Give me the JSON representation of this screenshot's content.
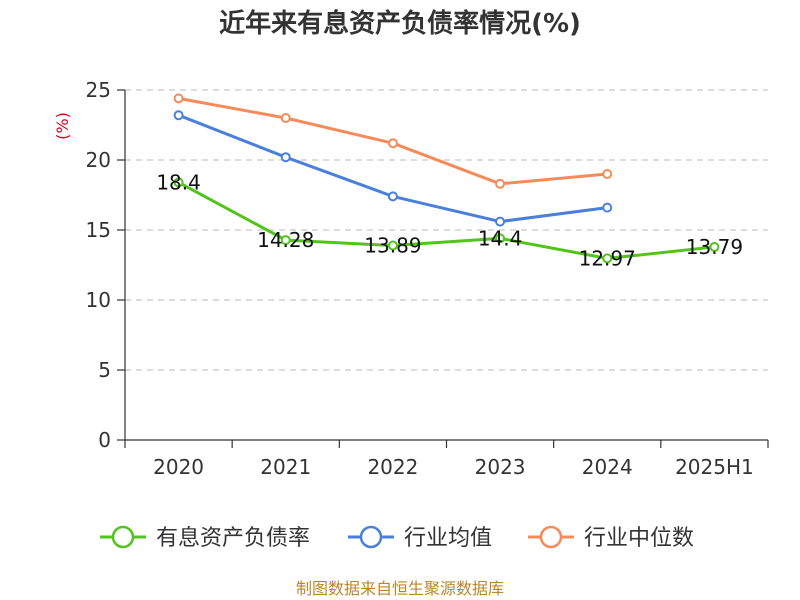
{
  "chart_data": {
    "type": "line",
    "title": "近年来有息资产负债率情况(%)",
    "unit_label": "(%)",
    "categories": [
      "2020",
      "2021",
      "2022",
      "2023",
      "2024",
      "2025H1"
    ],
    "ylim": [
      0,
      25
    ],
    "yticks": [
      0,
      5,
      10,
      15,
      20,
      25
    ],
    "grid": true,
    "legend_position": "bottom",
    "series": [
      {
        "name": "有息资产负债率",
        "color": "#52c41a",
        "values": [
          18.4,
          14.28,
          13.89,
          14.4,
          12.97,
          13.79
        ],
        "labels": [
          "18.4",
          "14.28",
          "13.89",
          "14.4",
          "12.97",
          "13.79"
        ]
      },
      {
        "name": "行业均值",
        "color": "#4a7fdb",
        "values": [
          23.2,
          20.2,
          17.4,
          15.6,
          16.6,
          null
        ]
      },
      {
        "name": "行业中位数",
        "color": "#f58b5a",
        "values": [
          24.4,
          23.0,
          21.2,
          18.3,
          19.0,
          null
        ]
      }
    ],
    "source": "制图数据来自恒生聚源数据库"
  }
}
